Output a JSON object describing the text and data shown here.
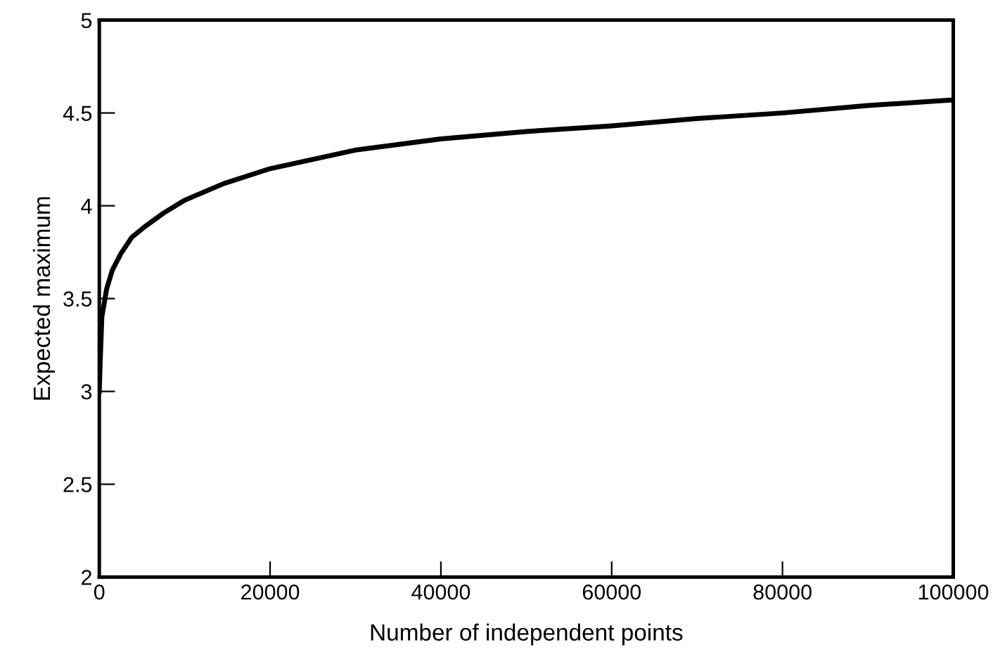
{
  "chart_data": {
    "type": "line",
    "xlabel": "Number of independent points",
    "ylabel": "Expected maximum",
    "x": [
      0,
      100,
      300,
      850,
      1500,
      2500,
      3800,
      5400,
      7500,
      10000,
      14600,
      20000,
      25000,
      30000,
      40000,
      50000,
      60000,
      70000,
      80000,
      90000,
      100000
    ],
    "values": [
      3.0,
      3.15,
      3.4,
      3.55,
      3.65,
      3.74,
      3.83,
      3.89,
      3.96,
      4.03,
      4.12,
      4.2,
      4.25,
      4.3,
      4.36,
      4.4,
      4.43,
      4.47,
      4.5,
      4.54,
      4.57
    ],
    "color": "#000000",
    "xlim": [
      0,
      100000
    ],
    "ylim": [
      2,
      5
    ],
    "xticks": [
      0,
      20000,
      40000,
      60000,
      80000,
      100000
    ],
    "yticks": [
      2,
      2.5,
      3,
      3.5,
      4,
      4.5,
      5
    ],
    "grid": false,
    "marker": "none",
    "line_style": "solid"
  }
}
